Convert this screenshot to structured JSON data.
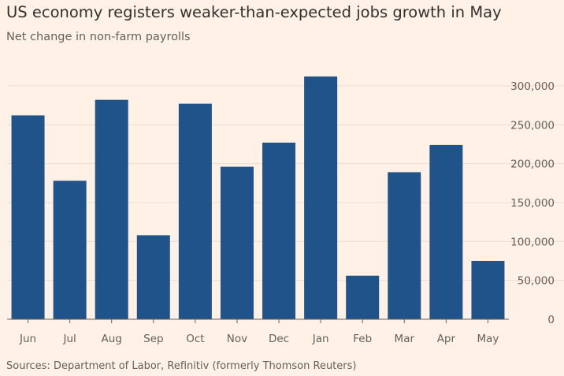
{
  "title": "US economy registers weaker-than-expected jobs growth in May",
  "subtitle": "Net change in non-farm payrolls",
  "source": "Sources: Department of Labor, Refinitiv (formerly Thomson Reuters)",
  "colors": {
    "background": "#FFF1E5",
    "bar": "#1F538A",
    "grid": "#E9DECF",
    "axis_text": "#66605C"
  },
  "chart_data": {
    "type": "bar",
    "title": "US economy registers weaker-than-expected jobs growth in May",
    "subtitle": "Net change in non-farm payrolls",
    "xlabel": "",
    "ylabel": "",
    "categories": [
      "Jun",
      "Jul",
      "Aug",
      "Sep",
      "Oct",
      "Nov",
      "Dec",
      "Jan",
      "Feb",
      "Mar",
      "Apr",
      "May"
    ],
    "values": [
      262000,
      178000,
      282000,
      108000,
      277000,
      196000,
      227000,
      312000,
      56000,
      189000,
      224000,
      75000
    ],
    "ylim": [
      0,
      320000
    ],
    "yticks": [
      0,
      50000,
      100000,
      150000,
      200000,
      250000,
      300000
    ],
    "ytick_labels": [
      "0",
      "50,000",
      "100,000",
      "150,000",
      "200,000",
      "250,000",
      "300,000"
    ],
    "y_axis_side": "right",
    "grid": true
  }
}
